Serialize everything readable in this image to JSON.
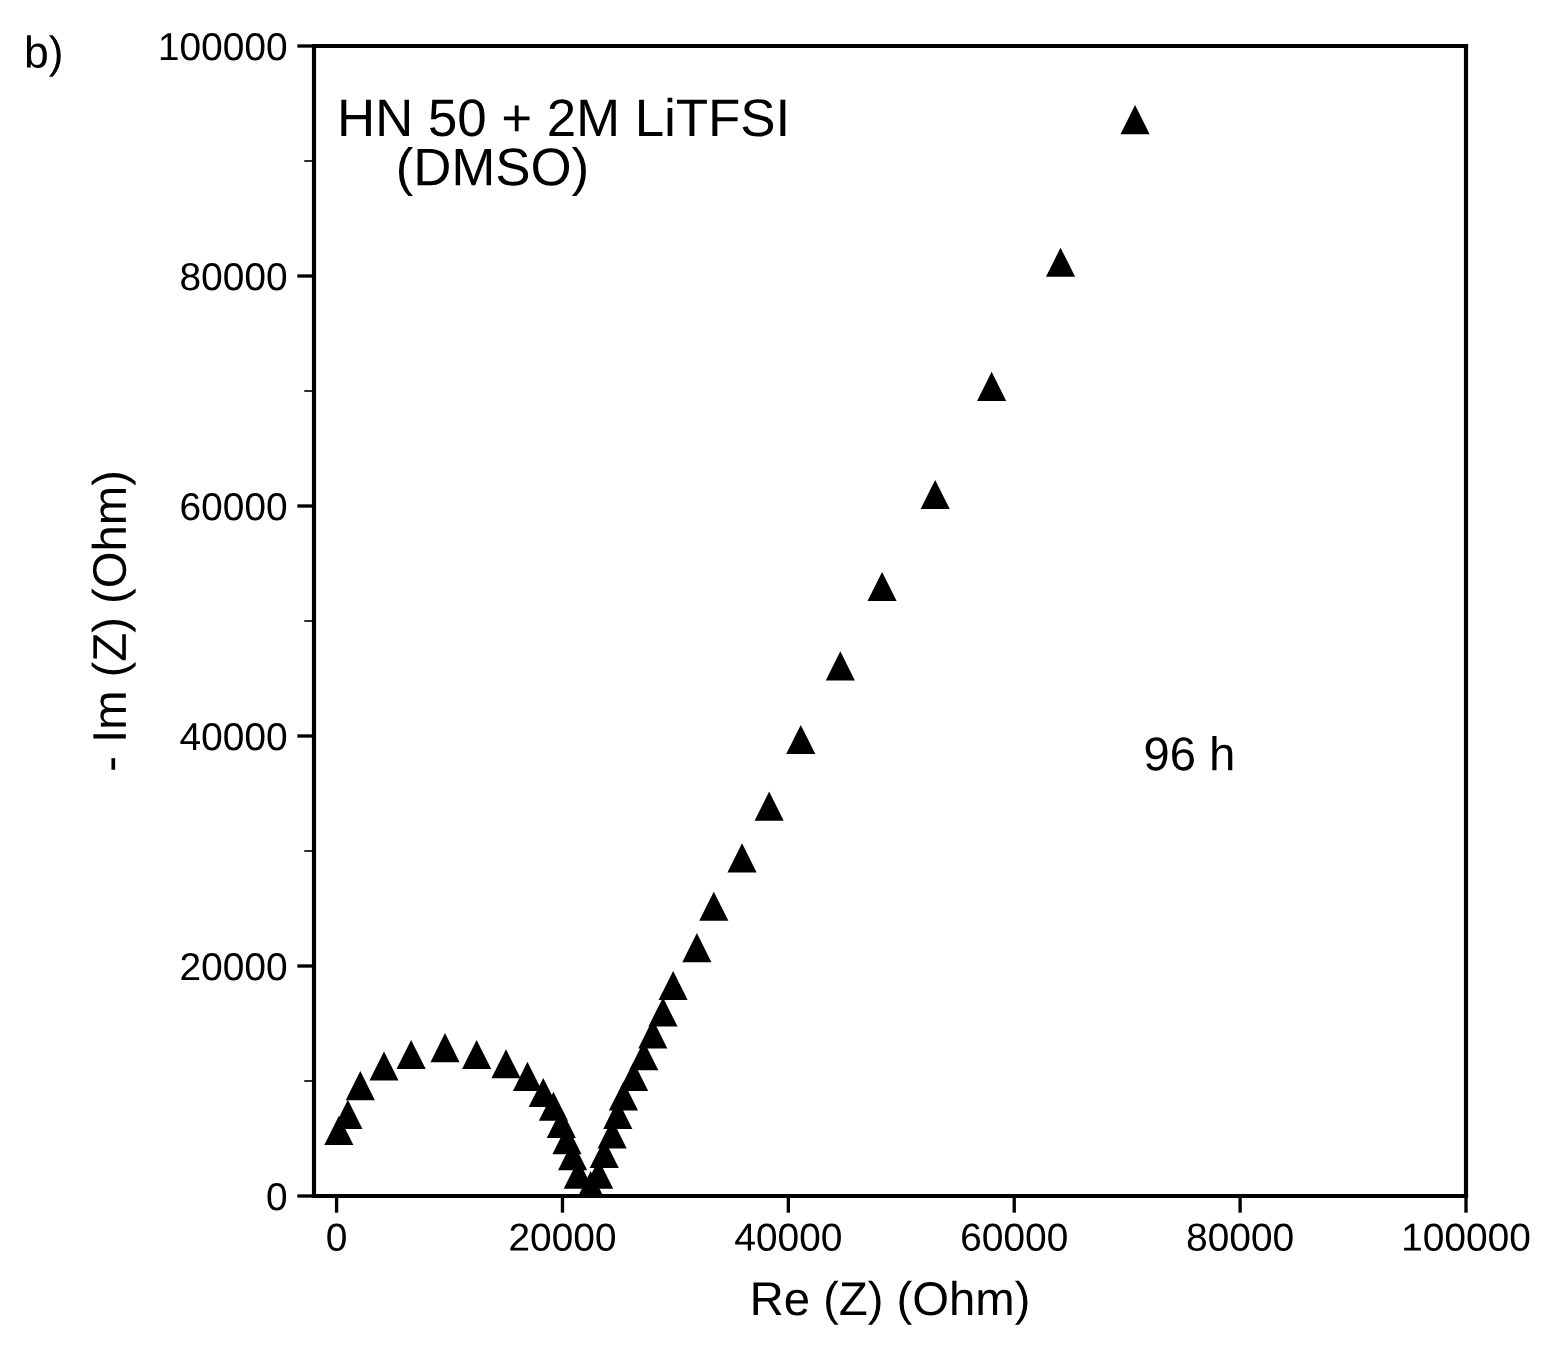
{
  "chart_data": {
    "type": "scatter",
    "xlabel": "Re (Z) (Ohm)",
    "ylabel": "- Im (Z) (Ohm)",
    "annotations": [
      "b)",
      "HN 50 + 2M LiTFSI\n    (DMSO)",
      "96 h"
    ],
    "marker": "triangle",
    "grid": false,
    "legend": false,
    "xlim": [
      -2000,
      100000
    ],
    "xticks": [
      0,
      20000,
      40000,
      60000,
      80000,
      100000
    ],
    "ylim": [
      0,
      100000
    ],
    "yticks": [
      0,
      20000,
      40000,
      60000,
      80000,
      100000
    ],
    "series": [
      {
        "color": "#000000",
        "x": [
          200,
          1000,
          2100,
          4200,
          6600,
          9600,
          12400,
          15000,
          16900,
          18300,
          19200,
          19900,
          20400,
          20900,
          21400,
          22500,
          23200,
          23700,
          24400,
          24900,
          25400,
          26300,
          27200,
          28000,
          28900,
          29800,
          31900,
          33400,
          35900,
          38300,
          41100,
          44600,
          48300,
          53000,
          58000,
          64100,
          70700
        ],
        "values": [
          5700,
          7100,
          9600,
          11300,
          12300,
          12900,
          12300,
          11500,
          10400,
          9000,
          7800,
          6300,
          4900,
          3500,
          1900,
          900,
          1900,
          3700,
          5400,
          7100,
          8700,
          10400,
          12200,
          14100,
          16000,
          18300,
          21600,
          25200,
          29400,
          33900,
          39700,
          46100,
          53000,
          61000,
          70400,
          81200,
          93600
        ]
      }
    ]
  }
}
